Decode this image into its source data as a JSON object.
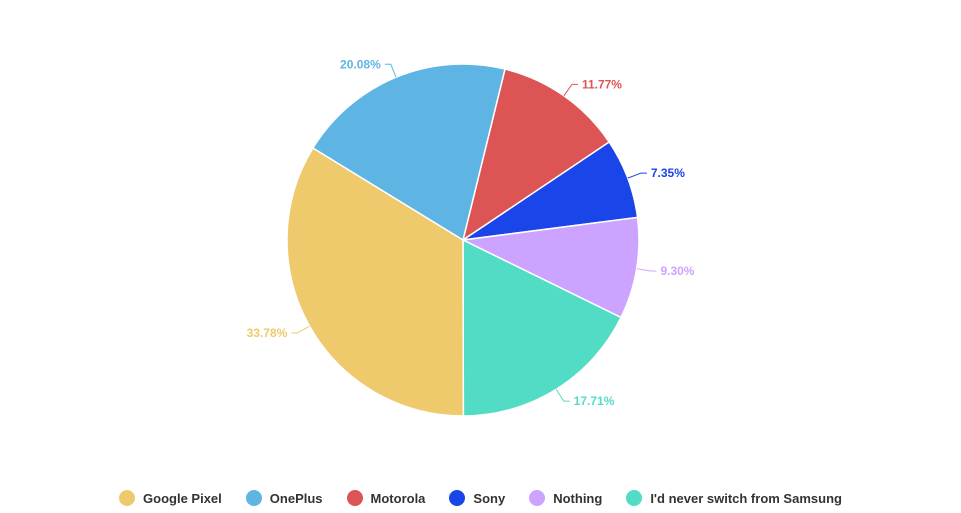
{
  "chart_data": {
    "type": "pie",
    "categories": [
      "Google Pixel",
      "OnePlus",
      "Motorola",
      "Sony",
      "Nothing",
      "I'd never switch from Samsung"
    ],
    "values": [
      33.78,
      20.08,
      11.77,
      7.35,
      9.3,
      17.71
    ],
    "value_labels": [
      "33.78%",
      "20.08%",
      "11.77%",
      "7.35%",
      "9.30%",
      "17.71%"
    ],
    "colors": [
      "#EECA6C",
      "#5EB5E4",
      "#DD5455",
      "#1A45E8",
      "#CCA3FF",
      "#52DCC6"
    ],
    "legend_position": "bottom"
  }
}
